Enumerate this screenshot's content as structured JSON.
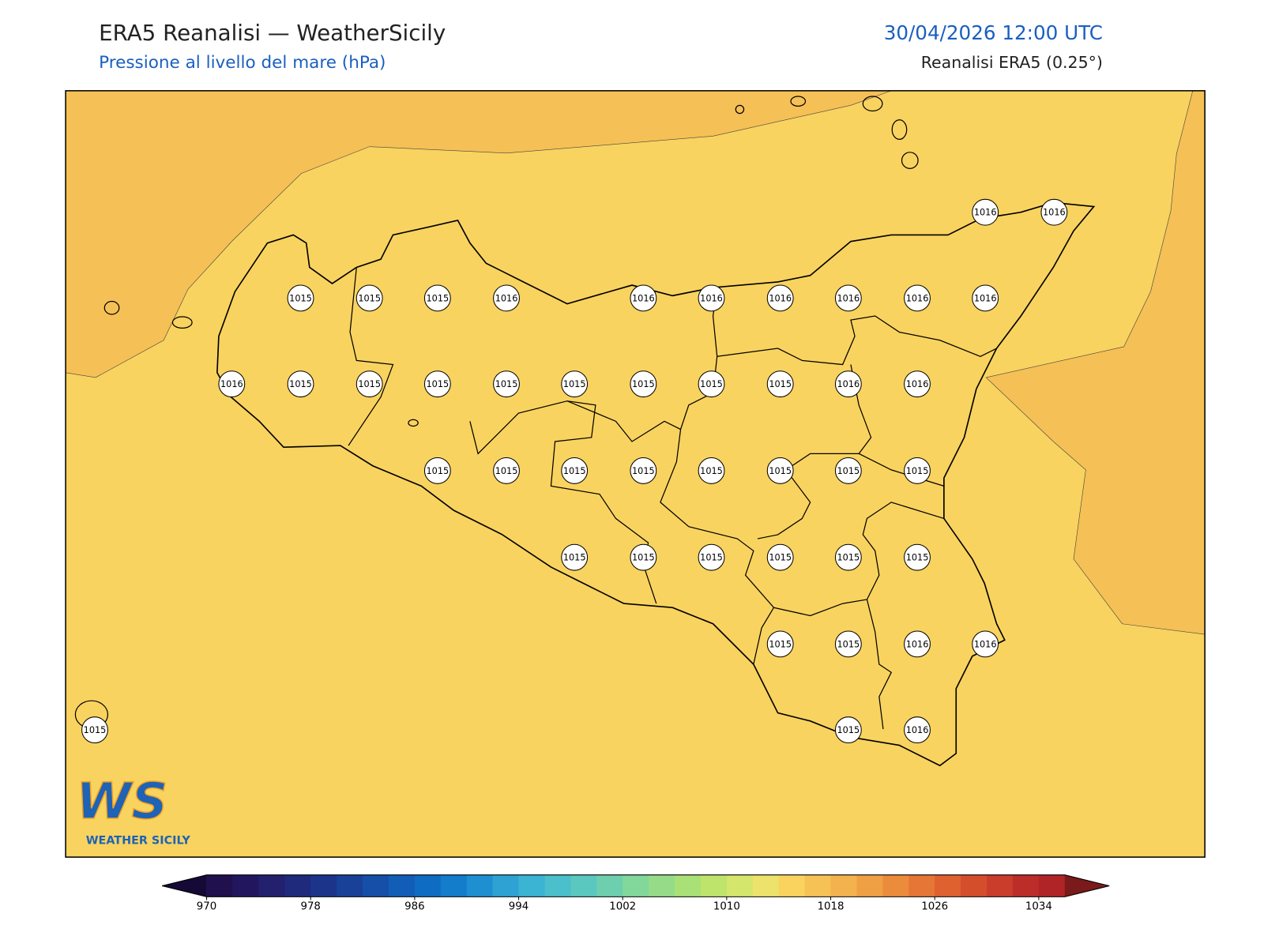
{
  "header": {
    "title": "ERA5 Reanalisi — WeatherSicily",
    "subtitle": "Pressione al livello del mare (hPa)",
    "datetime": "30/04/2026 12:00 UTC",
    "source": "Reanalisi ERA5 (0.25°)"
  },
  "stations": [
    1016,
    1016,
    1015,
    1015,
    1015,
    1016,
    1016,
    1016,
    1016,
    1016,
    1016,
    1016,
    1016,
    1015,
    1015,
    1015,
    1015,
    1015,
    1015,
    1015,
    1015,
    1016,
    1016,
    1015,
    1015,
    1015,
    1015,
    1015,
    1015,
    1015,
    1015,
    1015,
    1015,
    1015,
    1015,
    1015,
    1015,
    1015,
    1015,
    1016,
    1016,
    1015,
    1015,
    1016
  ],
  "logo": {
    "mark": "WS",
    "name": "WEATHER SICILY"
  },
  "colorbar": {
    "ticks": [
      970,
      978,
      986,
      994,
      1002,
      1010,
      1018,
      1026,
      1034
    ],
    "colors": [
      "#20104e",
      "#22175f",
      "#23206e",
      "#1f2a7d",
      "#1c358b",
      "#1a4198",
      "#164fa8",
      "#125db6",
      "#0e6cc3",
      "#137ccb",
      "#1e8fd0",
      "#2ea2d3",
      "#3bb3d2",
      "#4bbfcb",
      "#5bc8bf",
      "#6dcfae",
      "#82d79a",
      "#96dc88",
      "#aae177",
      "#bfe46b",
      "#d4e66c",
      "#ede36c",
      "#fad35f",
      "#f6c256",
      "#f3b24d",
      "#efa044",
      "#eb8c3c",
      "#e67635",
      "#df612f",
      "#d54e2c",
      "#c93d2a",
      "#bc2d29",
      "#b02428"
    ],
    "under": "#150a36",
    "over": "#7a1a1a"
  }
}
